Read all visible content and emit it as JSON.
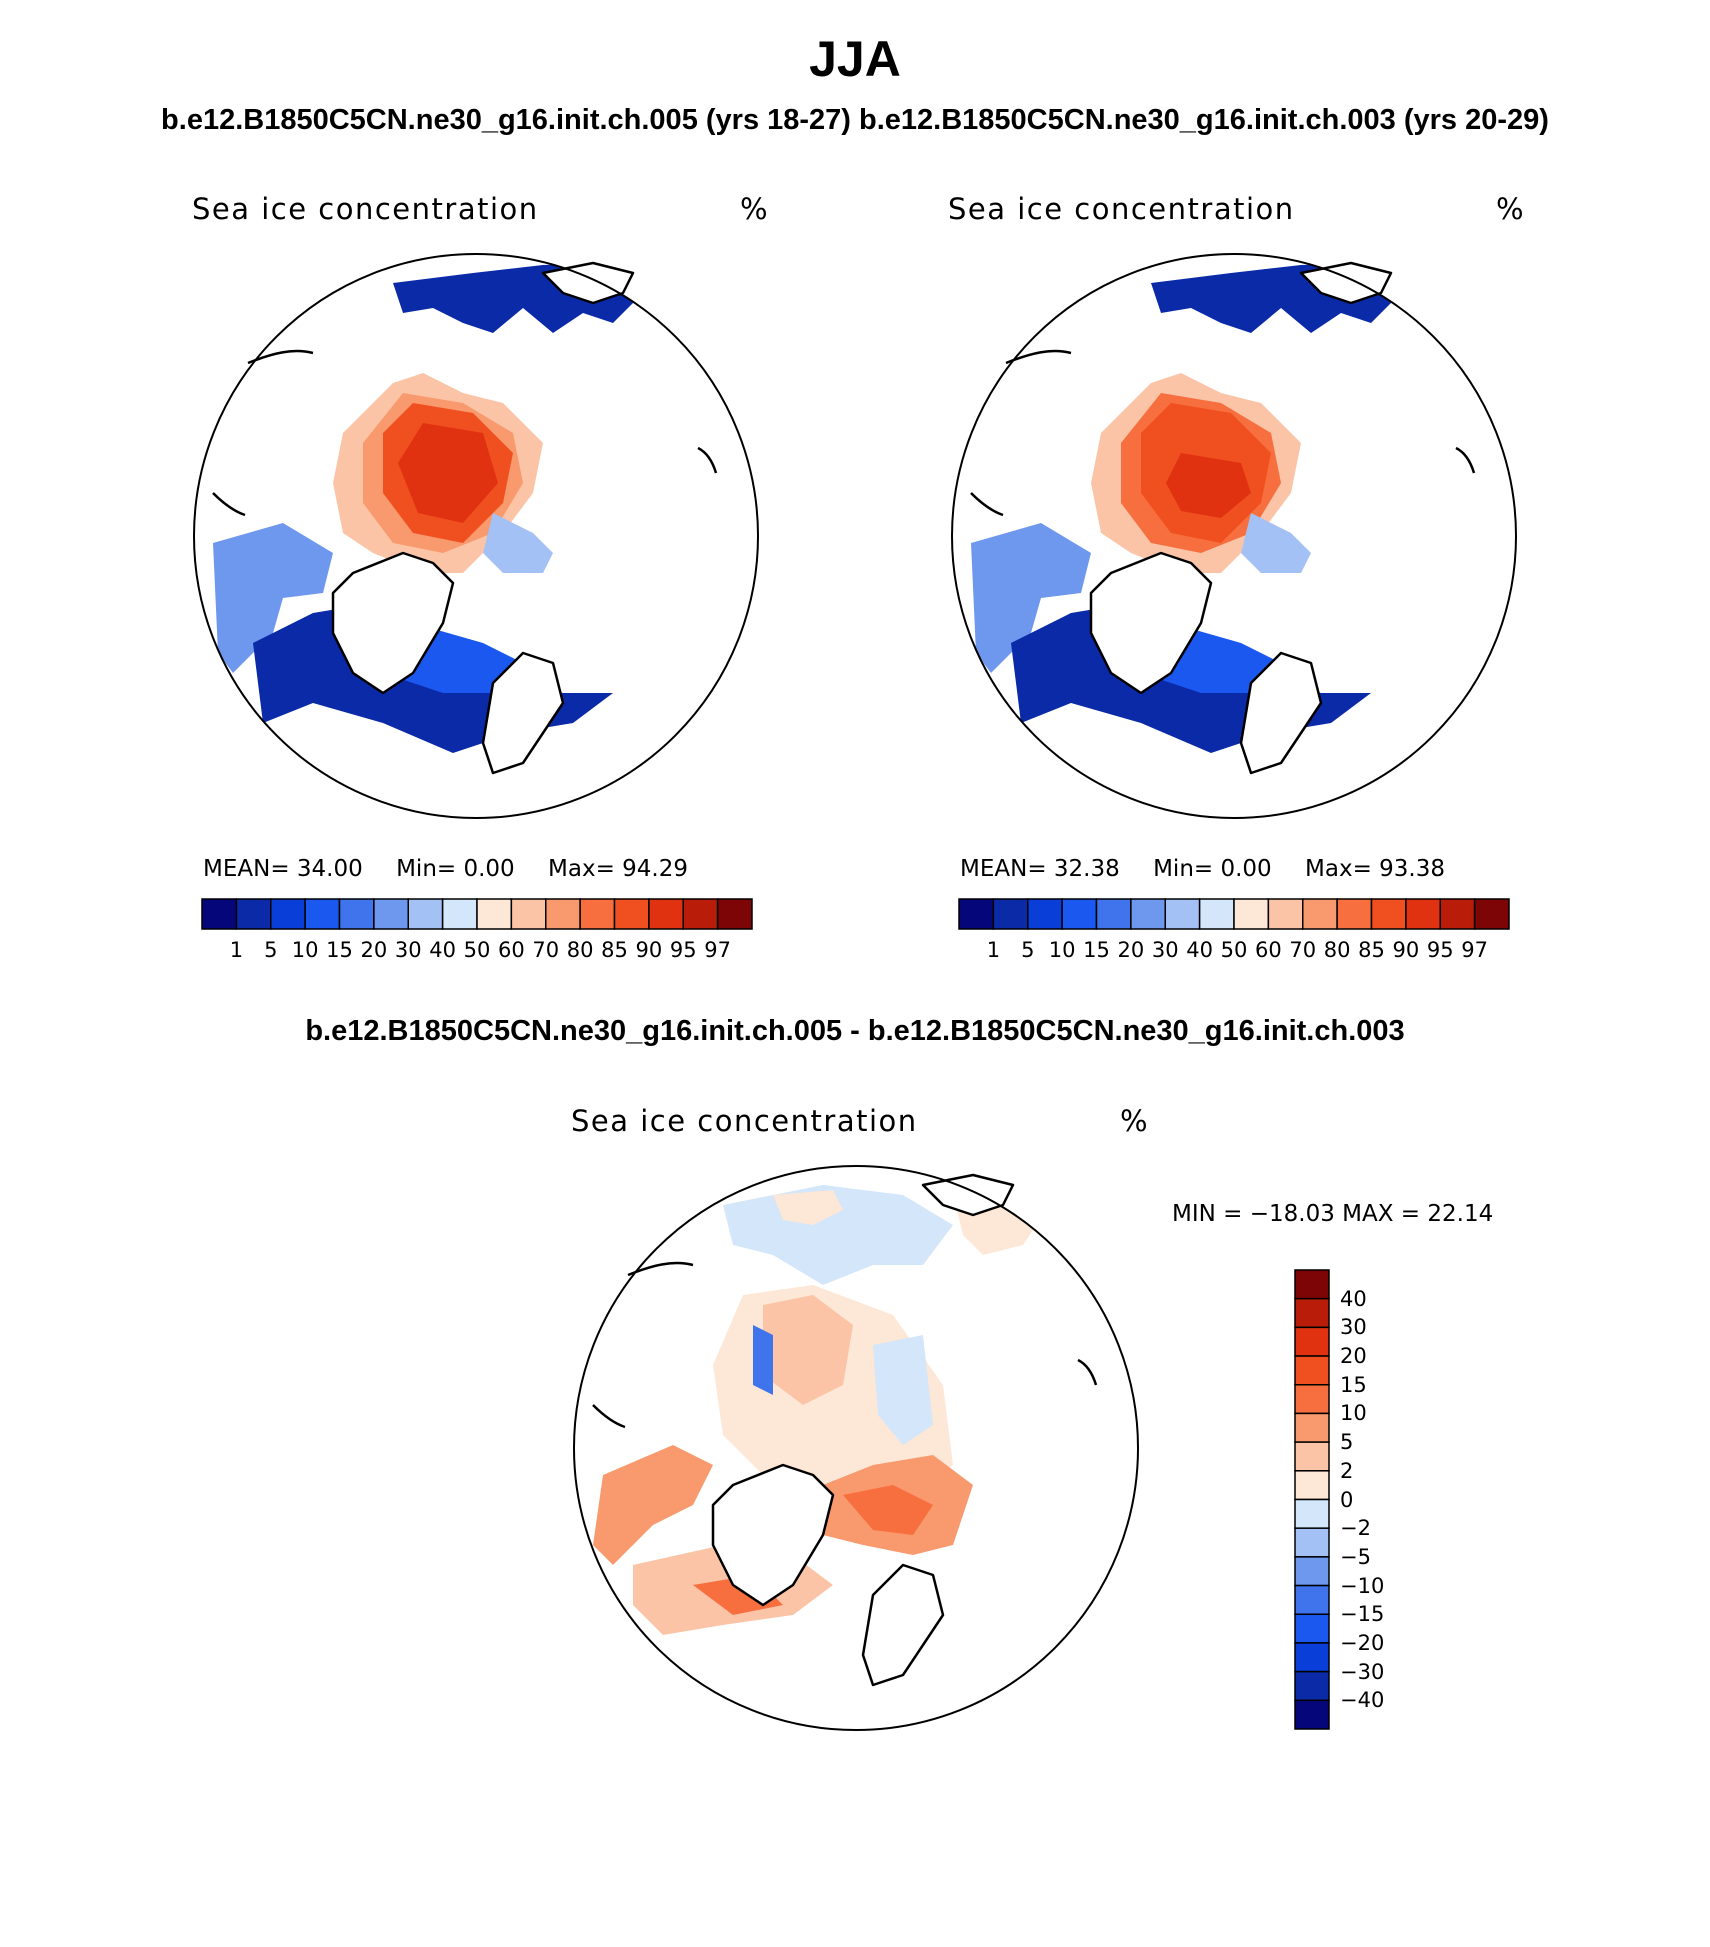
{
  "figure": {
    "season": "JJA",
    "case_header": "b.e12.B1850C5CN.ne30_g16.init.ch.005 (yrs 18-27) b.e12.B1850C5CN.ne30_g16.init.ch.003 (yrs 20-29)",
    "diff_header": "b.e12.B1850C5CN.ne30_g16.init.ch.005 - b.e12.B1850C5CN.ne30_g16.init.ch.003"
  },
  "panels": [
    {
      "variable": "Sea ice concentration",
      "units": "%",
      "mean_label": "MEAN=",
      "mean": "34.00",
      "min_label": "Min=",
      "min": "0.00",
      "max_label": "Max=",
      "max": "94.29"
    },
    {
      "variable": "Sea ice concentration",
      "units": "%",
      "mean_label": "MEAN=",
      "mean": "32.38",
      "min_label": "Min=",
      "min": "0.00",
      "max_label": "Max=",
      "max": "93.38"
    }
  ],
  "diff_panel": {
    "variable": "Sea ice concentration",
    "units": "%",
    "minmax": "MIN = −18.03 MAX =   22.14"
  },
  "abs_colorbar": {
    "levels": [
      "1",
      "5",
      "10",
      "15",
      "20",
      "30",
      "40",
      "50",
      "60",
      "70",
      "80",
      "85",
      "90",
      "95",
      "97"
    ],
    "colors": [
      "#04067a",
      "#0a2aa8",
      "#0a3ed8",
      "#1b58f0",
      "#3f74ec",
      "#6e97ee",
      "#a4c1f6",
      "#d3e6fa",
      "#fde7d6",
      "#fbc4a6",
      "#f9996e",
      "#f76f3e",
      "#f0501f",
      "#e03210",
      "#b91d0a",
      "#7d0505"
    ]
  },
  "diff_colorbar": {
    "levels": [
      "40",
      "30",
      "20",
      "15",
      "10",
      "5",
      "2",
      "0",
      "−2",
      "−5",
      "−10",
      "−15",
      "−20",
      "−30",
      "−40"
    ],
    "colors": [
      "#7d0505",
      "#b91d0a",
      "#e03210",
      "#f0501f",
      "#f76f3e",
      "#f9996e",
      "#fbc4a6",
      "#fde7d6",
      "#d3e6fa",
      "#a4c1f6",
      "#6e97ee",
      "#3f74ec",
      "#1b58f0",
      "#0a3ed8",
      "#0a2aa8",
      "#04067a"
    ]
  }
}
